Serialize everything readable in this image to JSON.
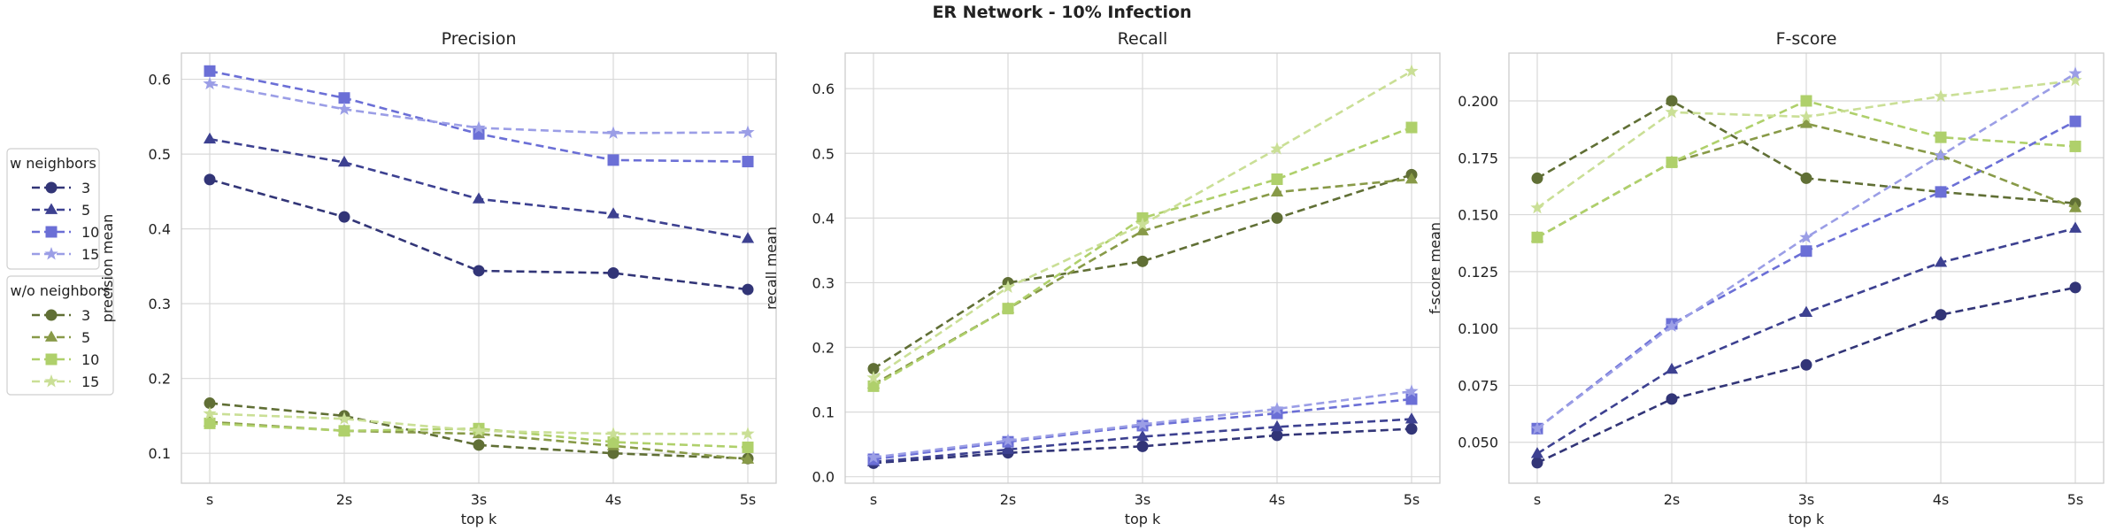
{
  "figure": {
    "title": "ER Network - 10% Infection"
  },
  "colors": {
    "w": [
      "#323577",
      "#3d4191",
      "#6b6fd6",
      "#9b9ee6"
    ],
    "wo": [
      "#606f35",
      "#889a48",
      "#afd06b",
      "#cadf96"
    ],
    "grid": "#d9d9d9",
    "frame": "#cccccc"
  },
  "legend": {
    "groups": [
      {
        "title": "w neighbors",
        "group": "w",
        "items": [
          "3",
          "5",
          "10",
          "15"
        ]
      },
      {
        "title": "w/o neighbors",
        "group": "wo",
        "items": [
          "3",
          "5",
          "10",
          "15"
        ]
      }
    ],
    "markers": [
      "circle",
      "triangle",
      "square",
      "star"
    ]
  },
  "chart_data": [
    {
      "type": "line",
      "title": "Precision",
      "xlabel": "top k",
      "ylabel": "precision mean",
      "categories": [
        "s",
        "2s",
        "3s",
        "4s",
        "5s"
      ],
      "ylim": [
        0.06,
        0.635
      ],
      "yticks": [
        0.1,
        0.2,
        0.3,
        0.4,
        0.5,
        0.6
      ],
      "yticklabels": [
        "0.1",
        "0.2",
        "0.3",
        "0.4",
        "0.5",
        "0.6"
      ],
      "grid": true,
      "series": [
        {
          "name": "3",
          "group": "w",
          "values": [
            0.466,
            0.416,
            0.344,
            0.341,
            0.319
          ]
        },
        {
          "name": "5",
          "group": "w",
          "values": [
            0.52,
            0.489,
            0.44,
            0.42,
            0.387
          ]
        },
        {
          "name": "10",
          "group": "w",
          "values": [
            0.611,
            0.575,
            0.527,
            0.492,
            0.49
          ]
        },
        {
          "name": "15",
          "group": "w",
          "values": [
            0.594,
            0.56,
            0.535,
            0.528,
            0.529
          ]
        },
        {
          "name": "3",
          "group": "wo",
          "values": [
            0.167,
            0.15,
            0.111,
            0.1,
            0.093
          ]
        },
        {
          "name": "5",
          "group": "wo",
          "values": [
            0.142,
            0.13,
            0.126,
            0.11,
            0.092
          ]
        },
        {
          "name": "10",
          "group": "wo",
          "values": [
            0.14,
            0.13,
            0.133,
            0.115,
            0.108
          ]
        },
        {
          "name": "15",
          "group": "wo",
          "values": [
            0.153,
            0.146,
            0.13,
            0.126,
            0.126
          ]
        }
      ]
    },
    {
      "type": "line",
      "title": "Recall",
      "xlabel": "top k",
      "ylabel": "recall mean",
      "categories": [
        "s",
        "2s",
        "3s",
        "4s",
        "5s"
      ],
      "ylim": [
        -0.01,
        0.655
      ],
      "yticks": [
        0.0,
        0.1,
        0.2,
        0.3,
        0.4,
        0.5,
        0.6
      ],
      "yticklabels": [
        "0.0",
        "0.1",
        "0.2",
        "0.3",
        "0.4",
        "0.5",
        "0.6"
      ],
      "grid": true,
      "series": [
        {
          "name": "3",
          "group": "w",
          "values": [
            0.021,
            0.037,
            0.047,
            0.064,
            0.074
          ]
        },
        {
          "name": "5",
          "group": "w",
          "values": [
            0.023,
            0.042,
            0.062,
            0.077,
            0.089
          ]
        },
        {
          "name": "10",
          "group": "w",
          "values": [
            0.027,
            0.054,
            0.079,
            0.098,
            0.12
          ]
        },
        {
          "name": "15",
          "group": "w",
          "values": [
            0.03,
            0.056,
            0.081,
            0.105,
            0.132
          ]
        },
        {
          "name": "3",
          "group": "wo",
          "values": [
            0.167,
            0.3,
            0.333,
            0.4,
            0.467
          ]
        },
        {
          "name": "5",
          "group": "wo",
          "values": [
            0.143,
            0.26,
            0.38,
            0.44,
            0.46
          ]
        },
        {
          "name": "10",
          "group": "wo",
          "values": [
            0.14,
            0.26,
            0.4,
            0.46,
            0.54
          ]
        },
        {
          "name": "15",
          "group": "wo",
          "values": [
            0.153,
            0.293,
            0.39,
            0.507,
            0.627
          ]
        }
      ]
    },
    {
      "type": "line",
      "title": "F-score",
      "xlabel": "top k",
      "ylabel": "f-score mean",
      "categories": [
        "s",
        "2s",
        "3s",
        "4s",
        "5s"
      ],
      "ylim": [
        0.032,
        0.221
      ],
      "yticks": [
        0.05,
        0.075,
        0.1,
        0.125,
        0.15,
        0.175,
        0.2
      ],
      "yticklabels": [
        "0.050",
        "0.075",
        "0.100",
        "0.125",
        "0.150",
        "0.175",
        "0.200"
      ],
      "grid": true,
      "series": [
        {
          "name": "3",
          "group": "w",
          "values": [
            0.041,
            0.069,
            0.084,
            0.106,
            0.118
          ]
        },
        {
          "name": "5",
          "group": "w",
          "values": [
            0.045,
            0.082,
            0.107,
            0.129,
            0.144
          ]
        },
        {
          "name": "10",
          "group": "w",
          "values": [
            0.056,
            0.102,
            0.134,
            0.16,
            0.191
          ]
        },
        {
          "name": "15",
          "group": "w",
          "values": [
            0.056,
            0.101,
            0.14,
            0.176,
            0.212
          ]
        },
        {
          "name": "3",
          "group": "wo",
          "values": [
            0.166,
            0.2,
            0.166,
            0.16,
            0.155
          ]
        },
        {
          "name": "5",
          "group": "wo",
          "values": [
            0.14,
            0.173,
            0.19,
            0.176,
            0.153
          ]
        },
        {
          "name": "10",
          "group": "wo",
          "values": [
            0.14,
            0.173,
            0.2,
            0.184,
            0.18
          ]
        },
        {
          "name": "15",
          "group": "wo",
          "values": [
            0.153,
            0.195,
            0.193,
            0.202,
            0.209
          ]
        }
      ]
    }
  ]
}
